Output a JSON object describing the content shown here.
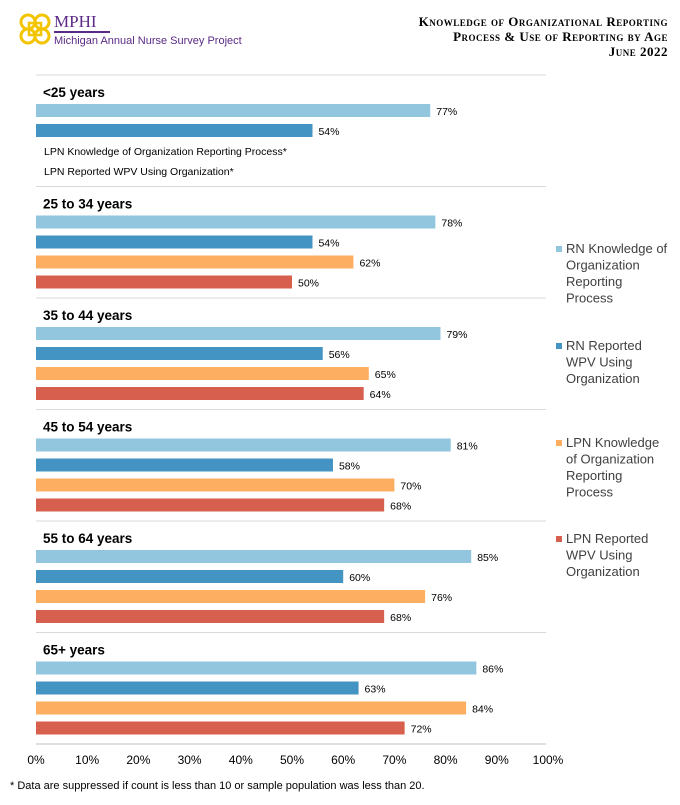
{
  "logo": {
    "name": "MPHI",
    "subtitle": "Michigan Annual Nurse Survey Project"
  },
  "title": {
    "line1": "Knowledge of Organizational Reporting",
    "line2": "Process & Use of Reporting by Age",
    "line3": "June 2022"
  },
  "footnote": "* Data are suppressed if count is less than 10 or sample population was less than 20.",
  "chart_data": {
    "type": "bar",
    "orientation": "horizontal",
    "xlim": [
      0,
      100
    ],
    "x_ticks": [
      "0%",
      "10%",
      "20%",
      "30%",
      "40%",
      "50%",
      "60%",
      "70%",
      "80%",
      "90%",
      "100%"
    ],
    "legend_position": "right",
    "series": [
      {
        "name": "RN Knowledge of Organization Reporting Process",
        "color": "#92c5de"
      },
      {
        "name": "RN Reported WPV Using Organization",
        "color": "#4393c3"
      },
      {
        "name": "LPN Knowledge of Organization Reporting Process",
        "color": "#fdae61"
      },
      {
        "name": "LPN Reported WPV Using Organization",
        "color": "#d6604d"
      }
    ],
    "groups": [
      {
        "label": "<25 years",
        "values": [
          77,
          54,
          null,
          null
        ],
        "suppressed_notes": [
          "LPN  Knowledge of Organization Reporting Process*",
          "LPN  Reported WPV Using Organization*"
        ]
      },
      {
        "label": "25 to 34 years",
        "values": [
          78,
          54,
          62,
          50
        ]
      },
      {
        "label": "35 to 44 years",
        "values": [
          79,
          56,
          65,
          64
        ]
      },
      {
        "label": "45 to 54 years",
        "values": [
          81,
          58,
          70,
          68
        ]
      },
      {
        "label": "55 to 64 years",
        "values": [
          85,
          60,
          76,
          68
        ]
      },
      {
        "label": "65+ years",
        "values": [
          86,
          63,
          84,
          72
        ]
      }
    ]
  }
}
